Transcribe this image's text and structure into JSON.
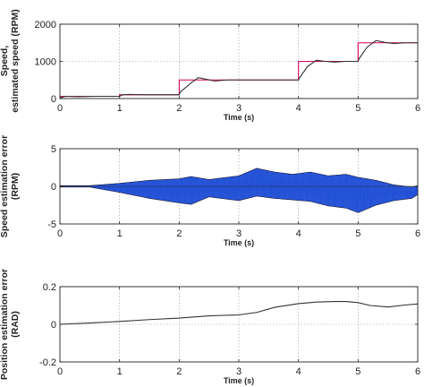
{
  "chart_data": [
    {
      "type": "line",
      "ylabel": [
        "Speed,",
        "estimated speed (RPM)"
      ],
      "xlabel": "Time (s)",
      "xlim": [
        0,
        6
      ],
      "ylim": [
        0,
        2000
      ],
      "xticks": [
        0,
        1,
        2,
        3,
        4,
        5,
        6
      ],
      "yticks": [
        0,
        1000,
        2000
      ],
      "grid": true,
      "series": [
        {
          "color": "#d6005c",
          "x": [
            0,
            1,
            1,
            2,
            2,
            4,
            4,
            5,
            5,
            6
          ],
          "y": [
            60,
            60,
            100,
            100,
            500,
            500,
            1000,
            1000,
            1500,
            1500
          ]
        },
        {
          "color": "#333333",
          "x": [
            0,
            0.1,
            0.3,
            0.6,
            1.0,
            1.05,
            1.15,
            1.5,
            2.0,
            2.02,
            2.2,
            2.32,
            2.45,
            2.6,
            2.8,
            3.2,
            4.0,
            4.02,
            4.15,
            4.3,
            4.45,
            4.6,
            4.8,
            5.0,
            5.02,
            5.15,
            5.3,
            5.45,
            5.6,
            5.8,
            6.0
          ],
          "y": [
            20,
            60,
            50,
            60,
            60,
            100,
            110,
            100,
            100,
            180,
            420,
            560,
            520,
            470,
            500,
            500,
            500,
            560,
            860,
            1030,
            1000,
            980,
            1000,
            1000,
            1080,
            1380,
            1560,
            1510,
            1480,
            1500,
            1500
          ]
        }
      ]
    },
    {
      "type": "line",
      "ylabel": [
        "Speed estimation error",
        "(RPM)"
      ],
      "xlabel": "Time (s)",
      "xlim": [
        0,
        6
      ],
      "ylim": [
        -5,
        5
      ],
      "xticks": [
        0,
        1,
        2,
        3,
        4,
        5,
        6
      ],
      "yticks": [
        -5,
        0,
        5
      ],
      "grid": true,
      "series": [
        {
          "color": "#1f4fd6",
          "envelope_x": [
            0,
            0.5,
            1.0,
            1.5,
            2.0,
            2.2,
            2.5,
            3.0,
            3.3,
            3.6,
            3.9,
            4.2,
            4.5,
            4.8,
            5.0,
            5.3,
            5.6,
            5.9,
            6.0
          ],
          "envelope_upper": [
            0.1,
            0.1,
            0.4,
            0.8,
            1.0,
            1.3,
            0.9,
            1.4,
            2.4,
            1.9,
            1.6,
            1.9,
            1.4,
            1.6,
            1.2,
            0.8,
            0.2,
            -0.1,
            0.1
          ],
          "envelope_lower": [
            -0.1,
            -0.1,
            -0.8,
            -1.6,
            -2.2,
            -2.4,
            -1.4,
            -1.9,
            -1.3,
            -1.6,
            -1.8,
            -2.0,
            -2.6,
            -2.9,
            -3.5,
            -2.5,
            -1.9,
            -1.6,
            -1.1
          ]
        }
      ]
    },
    {
      "type": "line",
      "ylabel": [
        "Position estimation error",
        "(RAD)"
      ],
      "xlabel": "Time (s)",
      "xlim": [
        0,
        6
      ],
      "ylim": [
        -0.2,
        0.2
      ],
      "xticks": [
        0,
        1,
        2,
        3,
        4,
        5,
        6
      ],
      "yticks": [
        -0.2,
        0,
        0.2
      ],
      "grid": true,
      "series": [
        {
          "color": "#333333",
          "x": [
            0,
            0.5,
            1.0,
            1.5,
            2.0,
            2.5,
            3.0,
            3.3,
            3.6,
            4.0,
            4.3,
            4.6,
            4.8,
            5.0,
            5.2,
            5.5,
            5.8,
            6.0
          ],
          "y": [
            0.0,
            0.007,
            0.015,
            0.025,
            0.033,
            0.045,
            0.05,
            0.063,
            0.09,
            0.11,
            0.118,
            0.121,
            0.121,
            0.115,
            0.1,
            0.092,
            0.103,
            0.108
          ]
        }
      ]
    }
  ]
}
